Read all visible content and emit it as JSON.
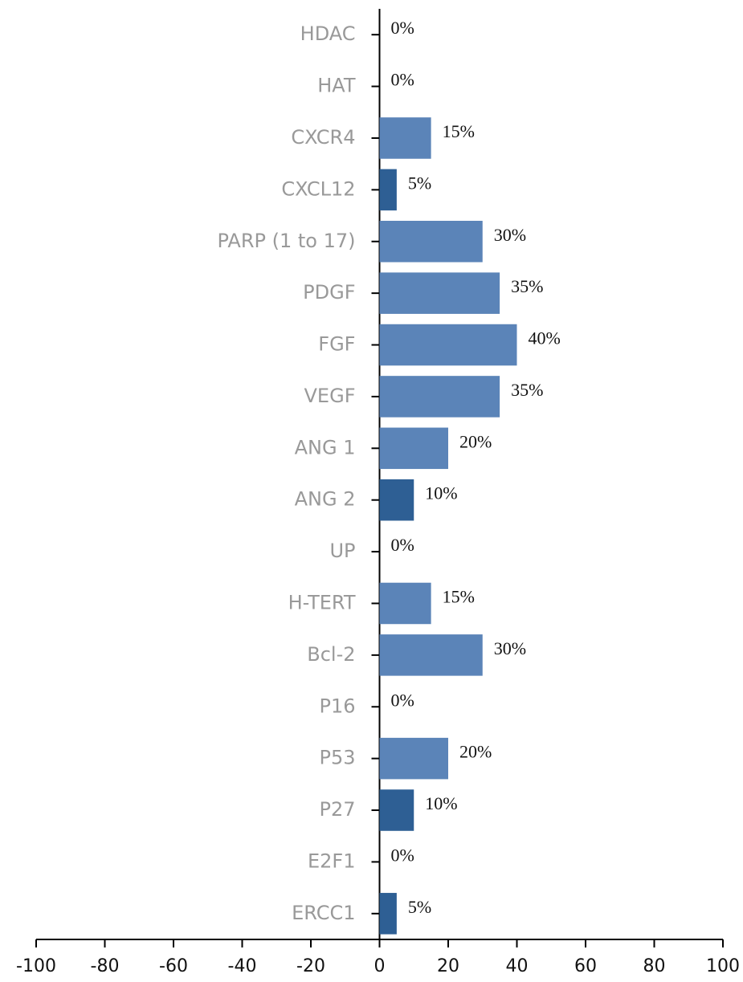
{
  "chart_data": {
    "type": "hbar",
    "categories": [
      "HDAC",
      "HAT",
      "CXCR4",
      "CXCL12",
      "PARP (1 to 17)",
      "PDGF",
      "FGF",
      "VEGF",
      "ANG 1",
      "ANG 2",
      "UP",
      "H-TERT",
      "Bcl-2",
      "P16",
      "P53",
      "P27",
      "E2F1",
      "ERCC1"
    ],
    "values": [
      0,
      0,
      15,
      5,
      30,
      35,
      40,
      35,
      20,
      10,
      0,
      15,
      30,
      0,
      20,
      10,
      0,
      5
    ],
    "value_labels": [
      "0%",
      "0%",
      "15%",
      "5%",
      "30%",
      "35%",
      "40%",
      "35%",
      "20%",
      "10%",
      "0%",
      "15%",
      "30%",
      "0%",
      "20%",
      "10%",
      "0%",
      "5%"
    ],
    "colors": [
      "#5b84b8",
      "#5b84b8",
      "#5b84b8",
      "#2e5f94",
      "#5b84b8",
      "#5b84b8",
      "#5b84b8",
      "#5b84b8",
      "#5b84b8",
      "#2e5f94",
      "#5b84b8",
      "#5b84b8",
      "#5b84b8",
      "#5b84b8",
      "#5b84b8",
      "#2e5f94",
      "#5b84b8",
      "#2e5f94"
    ],
    "xlim": [
      -100,
      100
    ],
    "xticks": [
      -100,
      -80,
      -60,
      -40,
      -20,
      0,
      20,
      40,
      60,
      80,
      100
    ],
    "grid": false
  }
}
